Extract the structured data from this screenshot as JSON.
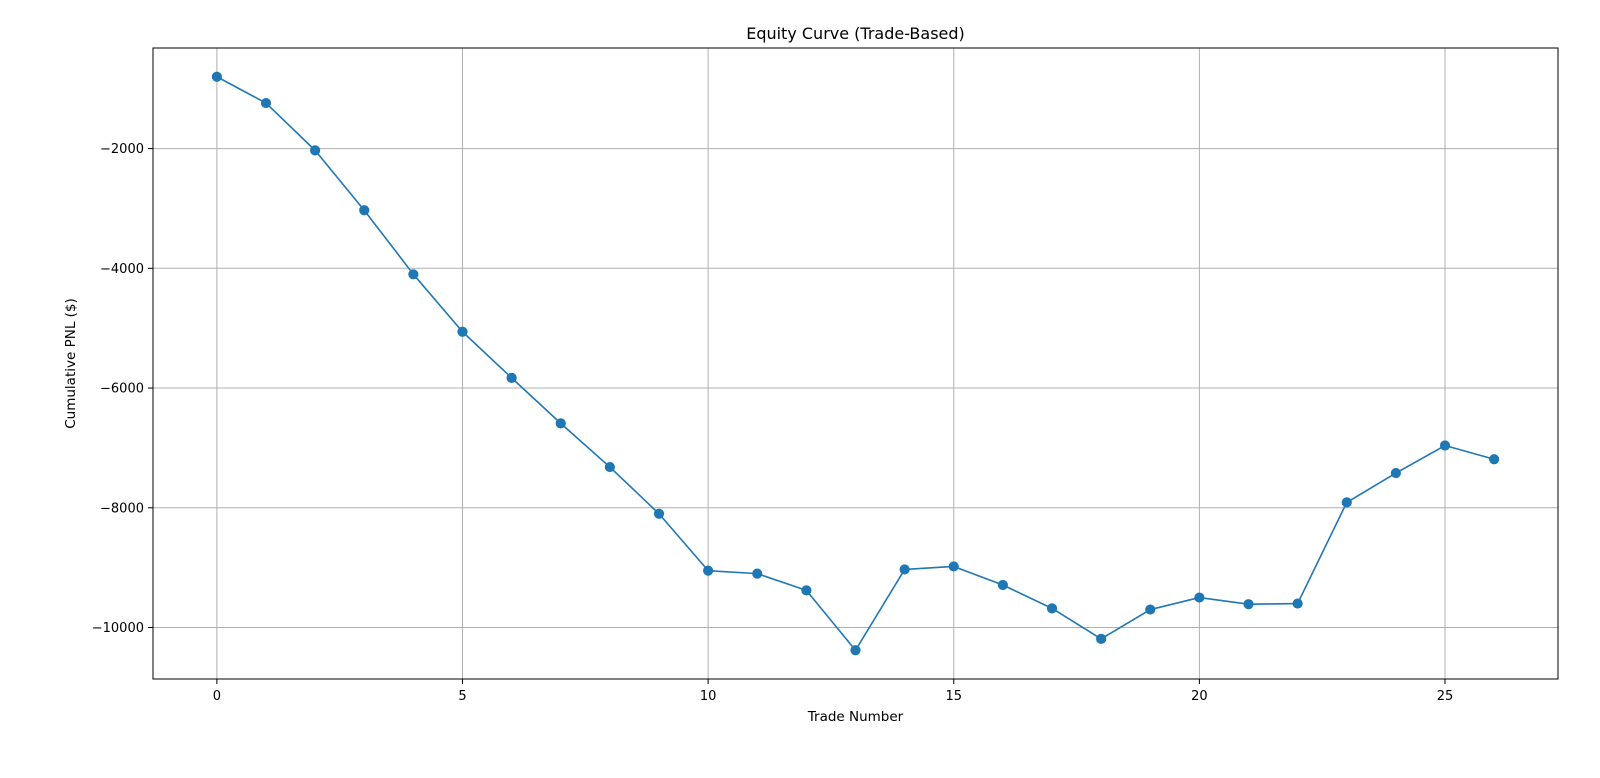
{
  "chart_data": {
    "type": "line",
    "title": "Equity Curve (Trade-Based)",
    "xlabel": "Trade Number",
    "ylabel": "Cumulative PNL ($)",
    "xlim": [
      -1.3,
      27.3
    ],
    "ylim": [
      -10860,
      -320
    ],
    "xticks": [
      0,
      5,
      10,
      15,
      20,
      25
    ],
    "yticks": [
      -10000,
      -8000,
      -6000,
      -4000,
      -2000
    ],
    "ytick_labels": [
      "−10000",
      "−8000",
      "−6000",
      "−4000",
      "−2000"
    ],
    "grid": true,
    "colors": {
      "series": "#1f77b4",
      "grid": "#b0b0b0",
      "frame": "#000000"
    },
    "marker": "circle",
    "series": [
      {
        "x": [
          0,
          1,
          2,
          3,
          4,
          5,
          6,
          7,
          8,
          9,
          10,
          11,
          12,
          13,
          14,
          15,
          16,
          17,
          18,
          19,
          20,
          21,
          22,
          23,
          24,
          25,
          26
        ],
        "y": [
          -800,
          -1240,
          -2030,
          -3030,
          -4100,
          -5060,
          -5830,
          -6590,
          -7320,
          -8100,
          -9050,
          -9100,
          -9380,
          -10380,
          -9030,
          -8980,
          -9290,
          -9680,
          -10190,
          -9700,
          -9500,
          -9610,
          -9600,
          -7910,
          -7420,
          -6960,
          -7190
        ]
      }
    ]
  }
}
